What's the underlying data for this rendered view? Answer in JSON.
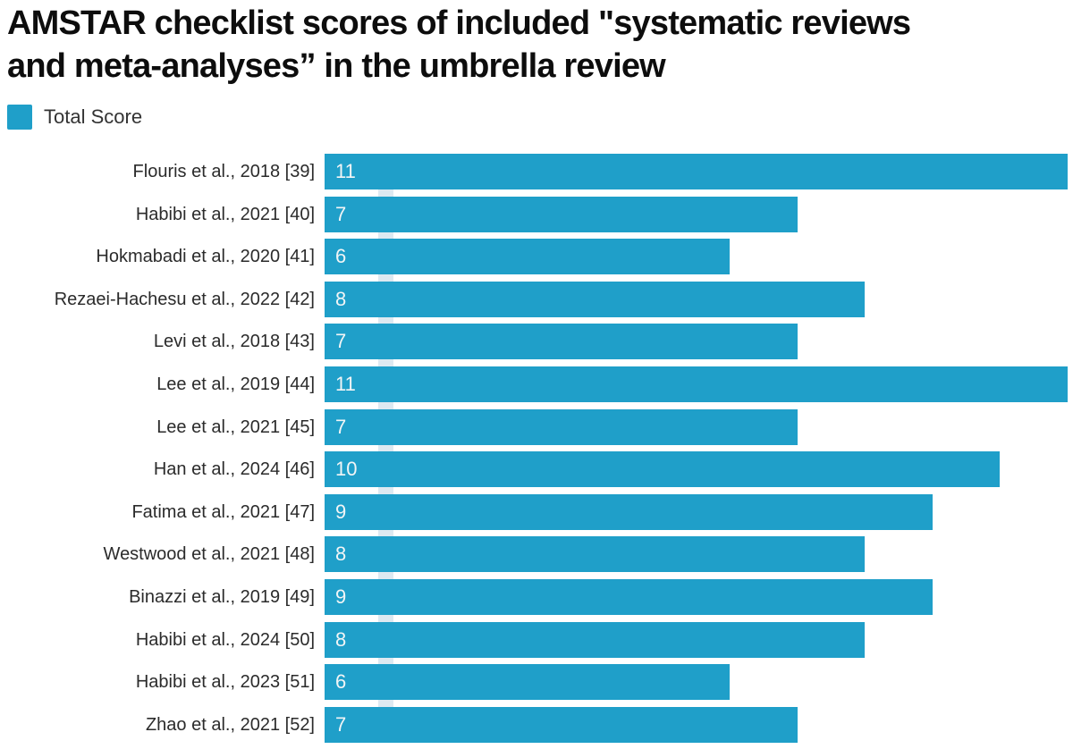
{
  "header": {
    "title_line1": "AMSTAR checklist scores of included \"systematic reviews",
    "title_line2": "and meta-analyses” in the umbrella review"
  },
  "legend": {
    "label": "Total Score",
    "swatch_color": "#1f9fc9"
  },
  "chart_data": {
    "type": "bar",
    "orientation": "horizontal",
    "title": "AMSTAR checklist scores of included \"systematic reviews and meta-analyses” in the umbrella review",
    "legend_entries": [
      "Total Score"
    ],
    "legend_position": "top-left",
    "grid": false,
    "xlim": [
      0,
      11
    ],
    "bar_color": "#1f9fc9",
    "value_label_color": "#f2f5f6",
    "categories": [
      "Flouris et al., 2018 [39]",
      "Habibi et al., 2021 [40]",
      "Hokmabadi et al., 2020 [41]",
      "Rezaei-Hachesu et al., 2022 [42]",
      "Levi et al., 2018 [43]",
      "Lee et al., 2019 [44]",
      "Lee et al., 2021 [45]",
      "Han et al., 2024 [46]",
      "Fatima et al., 2021 [47]",
      "Westwood et al., 2021 [48]",
      "Binazzi et al., 2019 [49]",
      "Habibi et al., 2024 [50]",
      "Habibi et al., 2023 [51]",
      "Zhao et al., 2021 [52]"
    ],
    "values": [
      11,
      7,
      6,
      8,
      7,
      11,
      7,
      10,
      9,
      8,
      9,
      8,
      6,
      7
    ],
    "series": [
      {
        "name": "Total Score",
        "values": [
          11,
          7,
          6,
          8,
          7,
          11,
          7,
          10,
          9,
          8,
          9,
          8,
          6,
          7
        ]
      }
    ]
  }
}
